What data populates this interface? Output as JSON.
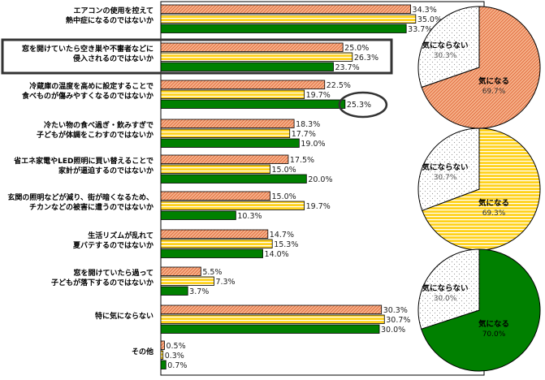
{
  "chart_data": [
    {
      "type": "bar",
      "orientation": "horizontal",
      "xlim": [
        0,
        40
      ],
      "grid": false,
      "categories": [
        [
          "エアコンの使用を控えて",
          "熱中症になるのではないか"
        ],
        [
          "窓を開けていたら空き巣や不審者などに",
          "侵入されるのではないか"
        ],
        [
          "冷蔵庫の温度を高めに設定することで",
          "食べものが傷みやすくなるのではないか"
        ],
        [
          "冷たい物の食べ過ぎ・飲みすぎで",
          "子どもが体調をこわすのではないか"
        ],
        [
          "省エネ家電やLED照明に買い替えることで",
          "家計が逼迫するのではないか"
        ],
        [
          "玄関の照明などが減り、街が暗くなるため、",
          "チカンなどの被害に遭うのではないか"
        ],
        [
          "生活リズムが乱れて",
          "夏バテするのではないか"
        ],
        [
          "窓を開けていたら過って",
          "子どもが落下するのではないか"
        ],
        [
          "特に気にならない"
        ],
        [
          "その他"
        ]
      ],
      "series": [
        {
          "values": [
            34.3,
            25.0,
            22.5,
            18.3,
            17.5,
            15.0,
            14.7,
            5.5,
            30.3,
            0.5
          ]
        },
        {
          "values": [
            35.0,
            26.3,
            19.7,
            17.7,
            15.0,
            19.7,
            15.3,
            7.3,
            30.7,
            0.3
          ]
        },
        {
          "values": [
            33.7,
            23.7,
            25.3,
            19.0,
            20.0,
            10.3,
            14.0,
            3.7,
            30.0,
            0.7
          ]
        }
      ],
      "value_labels": [
        [
          "34.3%",
          "25.0%",
          "22.5%",
          "18.3%",
          "17.5%",
          "15.0%",
          "14.7%",
          "5.5%",
          "30.3%",
          "0.5%"
        ],
        [
          "35.0%",
          "26.3%",
          "19.7%",
          "17.7%",
          "15.0%",
          "19.7%",
          "15.3%",
          "7.3%",
          "30.7%",
          "0.3%"
        ],
        [
          "33.7%",
          "23.7%",
          "25.3%",
          "19.0%",
          "20.0%",
          "10.3%",
          "14.0%",
          "3.7%",
          "30.0%",
          "0.7%"
        ]
      ],
      "highlighted_category_index": 1,
      "highlighted_value": {
        "category_index": 2,
        "series_index": 2
      }
    },
    {
      "type": "pie",
      "series_index": 0,
      "slices": [
        {
          "label": "気になる",
          "value": 69.7,
          "value_label": "69.7%"
        },
        {
          "label": "気にならない",
          "value": 30.3,
          "value_label": "30.3%"
        }
      ]
    },
    {
      "type": "pie",
      "series_index": 1,
      "slices": [
        {
          "label": "気になる",
          "value": 69.3,
          "value_label": "69.3%"
        },
        {
          "label": "気にならない",
          "value": 30.7,
          "value_label": "30.7%"
        }
      ]
    },
    {
      "type": "pie",
      "series_index": 2,
      "slices": [
        {
          "label": "気になる",
          "value": 70.0,
          "value_label": "70.0%"
        },
        {
          "label": "気にならない",
          "value": 30.0,
          "value_label": "30.0%"
        }
      ]
    }
  ],
  "colors": {
    "series_fill": [
      "#f6b28b",
      "#ffd21c",
      "#008000"
    ],
    "series_accent": [
      "#e0683a",
      "#ffffff",
      "#008000"
    ],
    "outline": "#000000",
    "unconcerned_fill": "#ffffff",
    "unconcerned_dots": "#9a9a9a",
    "highlight_box": "#333333"
  }
}
